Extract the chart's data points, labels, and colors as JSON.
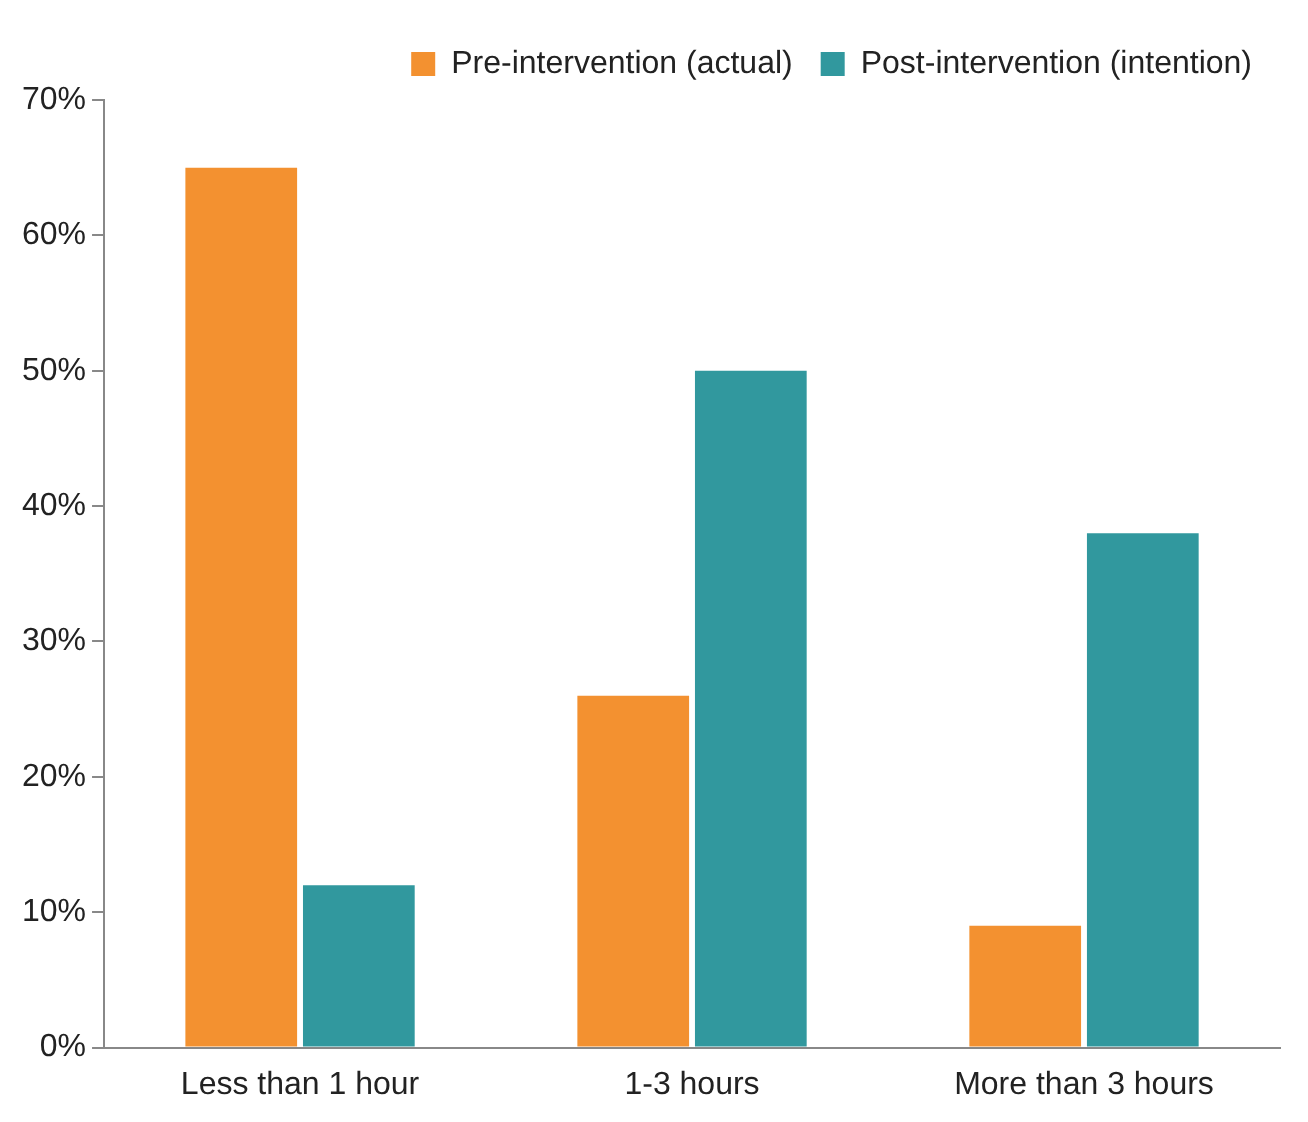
{
  "chart_data": {
    "type": "bar",
    "categories": [
      "Less than 1 hour",
      "1-3 hours",
      "More than 3 hours"
    ],
    "series": [
      {
        "name": "Pre-intervention (actual)",
        "color": "#f39130",
        "values": [
          65,
          26,
          9
        ]
      },
      {
        "name": "Post-intervention (intention)",
        "color": "#31989e",
        "values": [
          12,
          50,
          38
        ]
      }
    ],
    "ylim": [
      0,
      70
    ],
    "yticks": [
      {
        "value": 0,
        "label": "0%"
      },
      {
        "value": 10,
        "label": "10%"
      },
      {
        "value": 20,
        "label": "20%"
      },
      {
        "value": 30,
        "label": "30%"
      },
      {
        "value": 40,
        "label": "40%"
      },
      {
        "value": 50,
        "label": "50%"
      },
      {
        "value": 60,
        "label": "60%"
      },
      {
        "value": 70,
        "label": "70%"
      }
    ],
    "grid": false,
    "legend": "top right"
  }
}
